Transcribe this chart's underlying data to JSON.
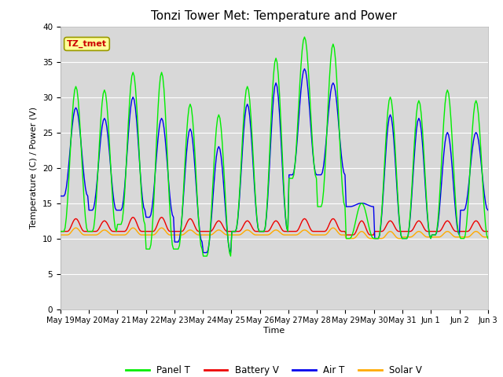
{
  "title": "Tonzi Tower Met: Temperature and Power",
  "ylabel": "Temperature (C) / Power (V)",
  "xlabel": "Time",
  "annotation": "TZ_tmet",
  "ylim": [
    0,
    40
  ],
  "yticks": [
    0,
    5,
    10,
    15,
    20,
    25,
    30,
    35,
    40
  ],
  "x_labels": [
    "May 19",
    "May 20",
    "May 21",
    "May 22",
    "May 23",
    "May 24",
    "May 25",
    "May 26",
    "May 27",
    "May 28",
    "May 29",
    "May 30",
    "May 31",
    "Jun 1",
    "Jun 2",
    "Jun 3"
  ],
  "panel_t_color": "#00ee00",
  "battery_v_color": "#ee0000",
  "air_t_color": "#0000ee",
  "solar_v_color": "#ffaa00",
  "bg_color": "#e8e8e8",
  "plot_bg_color": "#d8d8d8",
  "title_fontsize": 11,
  "legend_labels": [
    "Panel T",
    "Battery V",
    "Air T",
    "Solar V"
  ],
  "panel_t_peaks": [
    31.5,
    31.0,
    33.5,
    33.5,
    29.0,
    27.5,
    31.5,
    35.5,
    38.5,
    37.5,
    15.0,
    30.0,
    29.5,
    31.0,
    29.5
  ],
  "panel_t_mins": [
    11.0,
    11.0,
    12.0,
    8.5,
    8.5,
    7.5,
    11.0,
    11.0,
    18.5,
    14.5,
    10.0,
    10.0,
    10.0,
    10.5,
    10.0
  ],
  "air_t_peaks": [
    28.5,
    27.0,
    30.0,
    27.0,
    25.5,
    23.0,
    29.0,
    32.0,
    34.0,
    32.0,
    15.0,
    27.5,
    27.0,
    25.0,
    25.0
  ],
  "air_t_mins": [
    16.0,
    14.0,
    14.0,
    13.0,
    9.5,
    8.0,
    11.0,
    11.0,
    19.0,
    19.0,
    14.5,
    10.0,
    10.0,
    10.5,
    14.0
  ],
  "battery_peaks": [
    12.8,
    12.5,
    13.0,
    13.0,
    12.8,
    12.5,
    12.5,
    12.5,
    12.8,
    12.8,
    12.5,
    12.5,
    12.5,
    12.5,
    12.5
  ],
  "battery_base": [
    11.0,
    11.0,
    11.0,
    11.0,
    11.0,
    11.0,
    11.0,
    11.0,
    11.0,
    11.0,
    10.5,
    11.0,
    11.0,
    11.0,
    11.0
  ],
  "solar_peaks": [
    11.5,
    11.2,
    11.5,
    11.5,
    11.2,
    11.2,
    11.2,
    11.2,
    11.2,
    11.5,
    11.0,
    11.0,
    11.0,
    11.0,
    11.0
  ],
  "solar_base": [
    10.5,
    10.5,
    10.5,
    10.5,
    10.5,
    10.5,
    10.5,
    10.5,
    10.5,
    10.5,
    10.0,
    10.0,
    10.2,
    10.2,
    10.2
  ],
  "peak_hour": 13,
  "hours_per_day": 24,
  "num_days": 15
}
